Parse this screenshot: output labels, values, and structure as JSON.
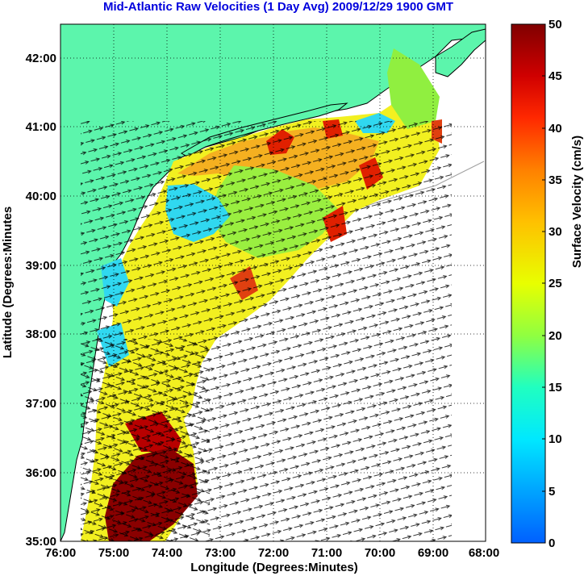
{
  "title": "Mid-Atlantic Raw Velocities (1 Day Avg) 2009/12/29 1900 GMT",
  "xlabel": "Longitude (Degrees:Minutes)",
  "ylabel": "Latitude (Degrees:Minutes",
  "colorbar_label": "Surface Velocity (cm/s)",
  "x_ticks": [
    "76:00",
    "75:00",
    "74:00",
    "73:00",
    "72:00",
    "71:00",
    "70:00",
    "69:00",
    "68:00"
  ],
  "y_ticks": [
    "35:00",
    "36:00",
    "37:00",
    "38:00",
    "39:00",
    "40:00",
    "41:00",
    "42:00"
  ],
  "colorbar_ticks": [
    "0",
    "5",
    "10",
    "15",
    "20",
    "25",
    "30",
    "35",
    "40",
    "45",
    "50"
  ],
  "colors": {
    "land": "#5cf5ac",
    "coastline_gray": "#a0a0a0",
    "grid": "#000000",
    "title": "#0000dd"
  },
  "chart_data": {
    "type": "heatmap",
    "xlim_deg_west": [
      76,
      68
    ],
    "ylim_deg_north": [
      35,
      42.5
    ],
    "colorbar_range": [
      0,
      50
    ],
    "grid": true
  }
}
